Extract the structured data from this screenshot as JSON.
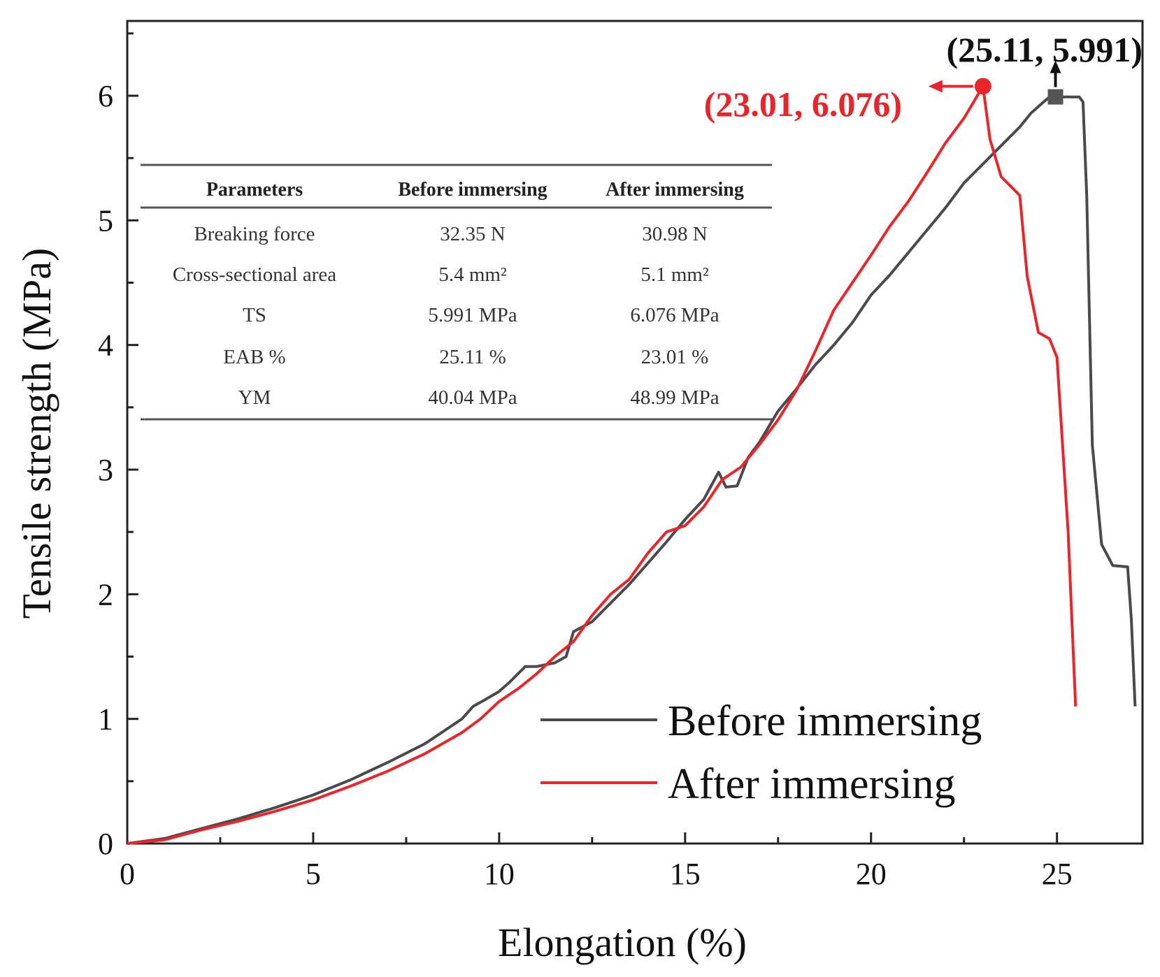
{
  "chart_data": {
    "type": "line",
    "title": "",
    "xlabel": "Elongation (%)",
    "ylabel": "Tensile strength (MPa)",
    "xlim": [
      0,
      27.3
    ],
    "ylim": [
      0,
      6.6
    ],
    "x_ticks": [
      "0",
      "5",
      "10",
      "15",
      "20",
      "25"
    ],
    "y_ticks": [
      "0",
      "1",
      "2",
      "3",
      "4",
      "5",
      "6"
    ],
    "grid": false,
    "legend_position": "bottom-right",
    "series": [
      {
        "name": "Before immersing",
        "color": "#4a4a4a",
        "marker": "square",
        "x": [
          0,
          1,
          2,
          3,
          4,
          5,
          6,
          7,
          8,
          9,
          9.3,
          9.6,
          10,
          10.3,
          10.7,
          11,
          11.5,
          11.8,
          12,
          12.5,
          13,
          13.5,
          14,
          14.5,
          15,
          15.5,
          15.9,
          16.1,
          16.4,
          16.7,
          17,
          17.5,
          18,
          18.5,
          19,
          19.5,
          20,
          20.5,
          21,
          21.5,
          22,
          22.5,
          23,
          23.5,
          24,
          24.3,
          24.6,
          24.8,
          25.11,
          25.4,
          25.6,
          25.7,
          25.8,
          25.95,
          26.2,
          26.5,
          26.9,
          27.0,
          27.1
        ],
        "y": [
          0,
          0.04,
          0.12,
          0.2,
          0.29,
          0.39,
          0.51,
          0.65,
          0.8,
          1.0,
          1.1,
          1.15,
          1.22,
          1.3,
          1.42,
          1.42,
          1.45,
          1.5,
          1.7,
          1.78,
          1.93,
          2.08,
          2.25,
          2.42,
          2.6,
          2.76,
          2.98,
          2.86,
          2.87,
          3.1,
          3.22,
          3.47,
          3.65,
          3.84,
          4.0,
          4.18,
          4.4,
          4.56,
          4.74,
          4.92,
          5.1,
          5.3,
          5.45,
          5.6,
          5.75,
          5.86,
          5.94,
          5.99,
          5.991,
          5.99,
          5.99,
          5.95,
          5.2,
          3.2,
          2.4,
          2.23,
          2.22,
          1.8,
          1.1
        ]
      },
      {
        "name": "After immersing",
        "color": "#e8252a",
        "marker": "circle",
        "x": [
          0,
          1,
          2,
          3,
          4,
          5,
          6,
          7,
          8,
          9,
          9.5,
          10,
          10.5,
          11,
          11.5,
          12,
          12.5,
          13,
          13.5,
          14,
          14.5,
          15,
          15.5,
          16,
          16.5,
          17,
          17.5,
          18,
          18.5,
          19,
          19.5,
          20,
          20.5,
          21,
          21.5,
          22,
          22.5,
          23.01,
          23.2,
          23.5,
          24,
          24.2,
          24.5,
          24.8,
          25.0,
          25.3,
          25.5
        ],
        "y": [
          0,
          0.03,
          0.11,
          0.18,
          0.26,
          0.35,
          0.46,
          0.58,
          0.72,
          0.89,
          1.0,
          1.14,
          1.24,
          1.36,
          1.5,
          1.62,
          1.83,
          2.0,
          2.12,
          2.33,
          2.5,
          2.55,
          2.7,
          2.92,
          3.02,
          3.2,
          3.4,
          3.64,
          3.95,
          4.28,
          4.5,
          4.72,
          4.95,
          5.15,
          5.38,
          5.62,
          5.82,
          6.076,
          5.65,
          5.35,
          5.2,
          4.55,
          4.1,
          4.05,
          3.9,
          2.5,
          1.1
        ]
      }
    ],
    "annotations": [
      {
        "text": "(25.11, 5.991)",
        "x": 25.11,
        "y": 5.991,
        "color": "#111111"
      },
      {
        "text": "(23.01, 6.076)",
        "x": 23.01,
        "y": 6.076,
        "color": "#e8252a"
      }
    ],
    "inset_table": {
      "headers": [
        "Parameters",
        "Before immersing",
        "After immersing"
      ],
      "rows": [
        [
          "Breaking force",
          "32.35 N",
          "30.98 N"
        ],
        [
          "Cross-sectional area",
          "5.4 mm²",
          "5.1 mm²"
        ],
        [
          "TS",
          "5.991 MPa",
          "6.076 MPa"
        ],
        [
          "EAB %",
          "25.11 %",
          "23.01 %"
        ],
        [
          "YM",
          "40.04 MPa",
          "48.99 MPa"
        ]
      ]
    }
  }
}
